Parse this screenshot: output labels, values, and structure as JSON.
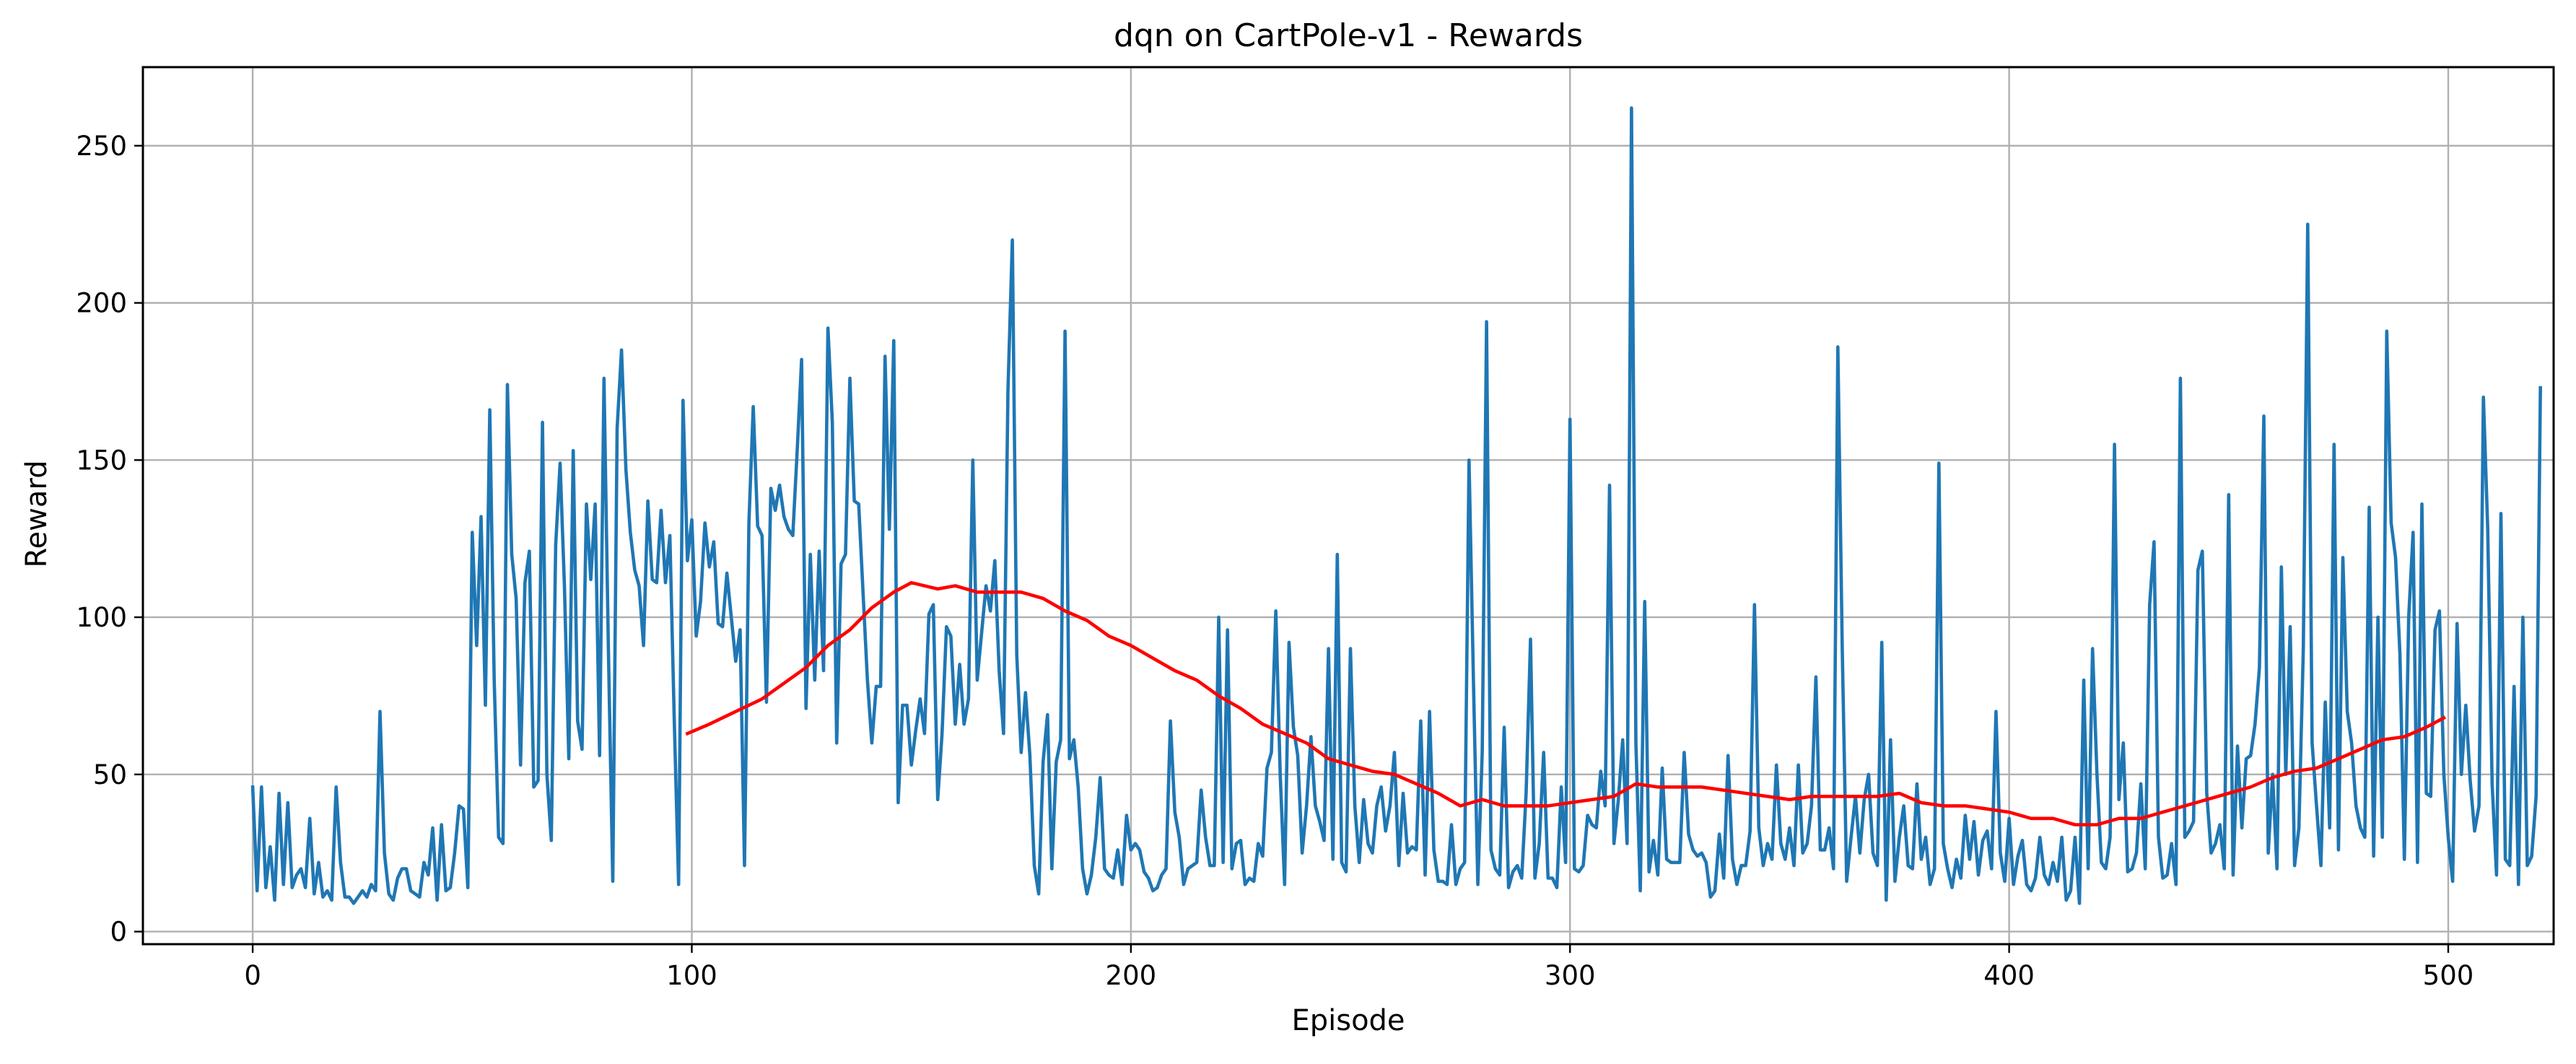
{
  "chart_data": {
    "type": "line",
    "title": "dqn on CartPole-v1 - Rewards",
    "xlabel": "Episode",
    "ylabel": "Reward",
    "xlim": [
      -25,
      524
    ],
    "ylim": [
      -4,
      275
    ],
    "xticks": [
      0,
      100,
      200,
      300,
      400,
      500
    ],
    "yticks": [
      0,
      50,
      100,
      150,
      200,
      250
    ],
    "grid": true,
    "colors": {
      "episode_reward": "#1f77b4",
      "moving_average": "#ff0000"
    },
    "series": [
      {
        "key": "episode_reward",
        "x_start": 0,
        "values": [
          46,
          13,
          46,
          14,
          27,
          10,
          44,
          15,
          41,
          14,
          18,
          20,
          14,
          36,
          12,
          22,
          11,
          13,
          10,
          46,
          22,
          11,
          11,
          9,
          11,
          13,
          11,
          15,
          13,
          70,
          25,
          12,
          10,
          17,
          20,
          20,
          13,
          12,
          11,
          22,
          18,
          33,
          10,
          34,
          13,
          14,
          25,
          40,
          39,
          14,
          127,
          91,
          132,
          72,
          166,
          80,
          30,
          28,
          174,
          120,
          106,
          53,
          111,
          121,
          46,
          48,
          162,
          50,
          29,
          123,
          149,
          110,
          55,
          153,
          67,
          58,
          136,
          112,
          136,
          56,
          176,
          90,
          16,
          160,
          185,
          147,
          127,
          115,
          110,
          91,
          137,
          112,
          111,
          134,
          111,
          126,
          68,
          15,
          169,
          118,
          131,
          94,
          105,
          130,
          116,
          124,
          98,
          97,
          114,
          100,
          86,
          96,
          21,
          130,
          167,
          129,
          126,
          73,
          141,
          134,
          142,
          132,
          128,
          126,
          153,
          182,
          71,
          120,
          80,
          121,
          83,
          192,
          162,
          60,
          117,
          120,
          176,
          137,
          136,
          108,
          80,
          60,
          78,
          78,
          183,
          128,
          188,
          41,
          72,
          72,
          53,
          64,
          74,
          63,
          101,
          104,
          42,
          63,
          97,
          94,
          66,
          85,
          66,
          74,
          150,
          80,
          95,
          110,
          102,
          118,
          83,
          63,
          172,
          220,
          88,
          57,
          76,
          56,
          21,
          12,
          54,
          69,
          20,
          54,
          61,
          191,
          55,
          61,
          46,
          20,
          12,
          18,
          30,
          49,
          20,
          18,
          17,
          26,
          15,
          37,
          26,
          28,
          26,
          19,
          17,
          13,
          14,
          18,
          20,
          67,
          38,
          30,
          15,
          20,
          21,
          22,
          45,
          30,
          21,
          21,
          100,
          22,
          96,
          20,
          28,
          29,
          15,
          17,
          16,
          28,
          24,
          52,
          57,
          102,
          50,
          15,
          92,
          65,
          56,
          25,
          40,
          62,
          40,
          35,
          29,
          90,
          23,
          120,
          22,
          19,
          90,
          40,
          22,
          42,
          28,
          25,
          40,
          46,
          32,
          40,
          57,
          21,
          44,
          25,
          27,
          26,
          67,
          18,
          70,
          26,
          16,
          16,
          15,
          34,
          15,
          20,
          22,
          150,
          80,
          15,
          57,
          194,
          26,
          20,
          18,
          65,
          14,
          19,
          21,
          17,
          44,
          93,
          17,
          28,
          57,
          17,
          17,
          14,
          46,
          22,
          163,
          20,
          19,
          21,
          37,
          34,
          33,
          51,
          40,
          142,
          28,
          42,
          61,
          28,
          262,
          60,
          13,
          105,
          19,
          29,
          18,
          52,
          23,
          22,
          22,
          22,
          57,
          31,
          26,
          24,
          25,
          22,
          11,
          13,
          31,
          17,
          56,
          23,
          15,
          21,
          21,
          32,
          104,
          33,
          21,
          28,
          23,
          53,
          28,
          23,
          33,
          21,
          53,
          25,
          28,
          40,
          81,
          26,
          26,
          33,
          20,
          186,
          90,
          16,
          30,
          43,
          25,
          42,
          50,
          25,
          21,
          92,
          10,
          61,
          16,
          30,
          40,
          21,
          20,
          47,
          23,
          30,
          15,
          20,
          149,
          28,
          20,
          14,
          23,
          17,
          37,
          23,
          35,
          18,
          29,
          32,
          20,
          70,
          25,
          16,
          36,
          15,
          24,
          29,
          15,
          13,
          17,
          30,
          18,
          15,
          22,
          16,
          30,
          10,
          13,
          30,
          9,
          80,
          20,
          90,
          50,
          22,
          20,
          30,
          155,
          42,
          60,
          19,
          20,
          25,
          47,
          20,
          104,
          124,
          30,
          17,
          18,
          28,
          15,
          176,
          30,
          32,
          35,
          115,
          121,
          44,
          25,
          28,
          34,
          20,
          139,
          18,
          59,
          33,
          55,
          56,
          66,
          84,
          164,
          25,
          50,
          20,
          116,
          50,
          97,
          21,
          33,
          90,
          225,
          60,
          40,
          21,
          73,
          33,
          155,
          26,
          119,
          70,
          60,
          40,
          33,
          30,
          135,
          24,
          100,
          30,
          191,
          130,
          119,
          88,
          23,
          100,
          127,
          22,
          136,
          44,
          43,
          96,
          102,
          50,
          30,
          16,
          98,
          50,
          72,
          48,
          32,
          40,
          170,
          128,
          47,
          18,
          133,
          23,
          21,
          78,
          15,
          100,
          21,
          24,
          43,
          173
        ]
      },
      {
        "key": "moving_average",
        "points": [
          [
            99,
            63
          ],
          [
            104,
            66
          ],
          [
            110,
            70
          ],
          [
            116,
            74
          ],
          [
            120,
            78
          ],
          [
            126,
            84
          ],
          [
            131,
            91
          ],
          [
            136,
            96
          ],
          [
            141,
            103
          ],
          [
            146,
            108
          ],
          [
            150,
            111
          ],
          [
            156,
            109
          ],
          [
            160,
            110
          ],
          [
            165,
            108
          ],
          [
            170,
            108
          ],
          [
            175,
            108
          ],
          [
            180,
            106
          ],
          [
            185,
            102
          ],
          [
            190,
            99
          ],
          [
            195,
            94
          ],
          [
            200,
            91
          ],
          [
            205,
            87
          ],
          [
            210,
            83
          ],
          [
            215,
            80
          ],
          [
            220,
            75
          ],
          [
            225,
            71
          ],
          [
            230,
            66
          ],
          [
            235,
            63
          ],
          [
            240,
            60
          ],
          [
            245,
            55
          ],
          [
            250,
            53
          ],
          [
            255,
            51
          ],
          [
            260,
            50
          ],
          [
            265,
            47
          ],
          [
            270,
            44
          ],
          [
            275,
            40
          ],
          [
            280,
            42
          ],
          [
            285,
            40
          ],
          [
            290,
            40
          ],
          [
            295,
            40
          ],
          [
            300,
            41
          ],
          [
            305,
            42
          ],
          [
            310,
            43
          ],
          [
            315,
            47
          ],
          [
            320,
            46
          ],
          [
            325,
            46
          ],
          [
            330,
            46
          ],
          [
            335,
            45
          ],
          [
            340,
            44
          ],
          [
            345,
            43
          ],
          [
            350,
            42
          ],
          [
            355,
            43
          ],
          [
            360,
            43
          ],
          [
            365,
            43
          ],
          [
            370,
            43
          ],
          [
            375,
            44
          ],
          [
            380,
            41
          ],
          [
            385,
            40
          ],
          [
            390,
            40
          ],
          [
            395,
            39
          ],
          [
            400,
            38
          ],
          [
            405,
            36
          ],
          [
            410,
            36
          ],
          [
            415,
            34
          ],
          [
            420,
            34
          ],
          [
            425,
            36
          ],
          [
            430,
            36
          ],
          [
            435,
            38
          ],
          [
            440,
            40
          ],
          [
            445,
            42
          ],
          [
            450,
            44
          ],
          [
            455,
            46
          ],
          [
            460,
            49
          ],
          [
            465,
            51
          ],
          [
            470,
            52
          ],
          [
            475,
            55
          ],
          [
            480,
            58
          ],
          [
            485,
            61
          ],
          [
            490,
            62
          ],
          [
            495,
            65
          ],
          [
            499,
            68
          ]
        ]
      }
    ]
  }
}
